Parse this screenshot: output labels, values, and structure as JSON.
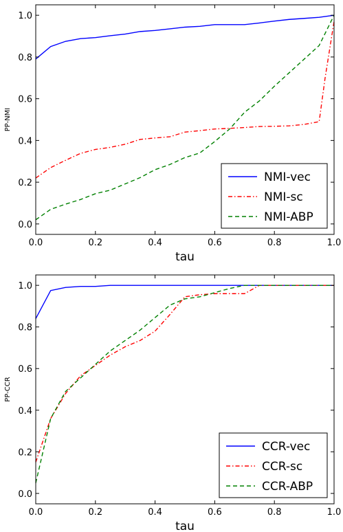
{
  "chart_data": [
    {
      "type": "line",
      "xlabel": "tau",
      "ylabel": "PP-NMI",
      "xlim": [
        0,
        1
      ],
      "ylim": [
        -0.05,
        1.05
      ],
      "xticks": [
        "0.0",
        "0.2",
        "0.4",
        "0.6",
        "0.8",
        "1.0"
      ],
      "yticks": [
        "0.0",
        "0.2",
        "0.4",
        "0.6",
        "0.8",
        "1.0"
      ],
      "grid": false,
      "legend_position": "lower-right",
      "series": [
        {
          "name": "NMI-vec",
          "color": "#0000ff",
          "style": "solid",
          "x": [
            0,
            0.05,
            0.1,
            0.15,
            0.2,
            0.25,
            0.3,
            0.35,
            0.4,
            0.45,
            0.5,
            0.55,
            0.6,
            0.65,
            0.7,
            0.75,
            0.8,
            0.85,
            0.9,
            0.95,
            1.0
          ],
          "y": [
            0.79,
            0.85,
            0.875,
            0.888,
            0.893,
            0.902,
            0.91,
            0.922,
            0.927,
            0.935,
            0.943,
            0.947,
            0.955,
            0.955,
            0.955,
            0.963,
            0.972,
            0.98,
            0.985,
            0.99,
            1.0
          ]
        },
        {
          "name": "NMI-sc",
          "color": "#ff0000",
          "style": "dashdot",
          "x": [
            0,
            0.05,
            0.1,
            0.15,
            0.2,
            0.25,
            0.3,
            0.35,
            0.4,
            0.45,
            0.5,
            0.55,
            0.6,
            0.65,
            0.7,
            0.75,
            0.8,
            0.85,
            0.9,
            0.95,
            0.97,
            1.0
          ],
          "y": [
            0.22,
            0.27,
            0.305,
            0.338,
            0.357,
            0.367,
            0.382,
            0.405,
            0.412,
            0.418,
            0.44,
            0.447,
            0.455,
            0.458,
            0.462,
            0.467,
            0.468,
            0.47,
            0.477,
            0.49,
            0.7,
            0.97
          ]
        },
        {
          "name": "NMI-ABP",
          "color": "#008000",
          "style": "dashed",
          "x": [
            0,
            0.05,
            0.1,
            0.15,
            0.2,
            0.25,
            0.3,
            0.35,
            0.4,
            0.45,
            0.5,
            0.55,
            0.6,
            0.65,
            0.7,
            0.75,
            0.8,
            0.85,
            0.9,
            0.95,
            1.0
          ],
          "y": [
            0.02,
            0.07,
            0.095,
            0.117,
            0.145,
            0.162,
            0.192,
            0.222,
            0.26,
            0.285,
            0.318,
            0.34,
            0.395,
            0.455,
            0.535,
            0.59,
            0.66,
            0.725,
            0.79,
            0.855,
            1.0
          ]
        }
      ]
    },
    {
      "type": "line",
      "xlabel": "tau",
      "ylabel": "PP-CCR",
      "xlim": [
        0,
        1
      ],
      "ylim": [
        -0.05,
        1.05
      ],
      "xticks": [
        "0.0",
        "0.2",
        "0.4",
        "0.6",
        "0.8",
        "1.0"
      ],
      "yticks": [
        "0.0",
        "0.2",
        "0.4",
        "0.6",
        "0.8",
        "1.0"
      ],
      "grid": false,
      "legend_position": "lower-right",
      "series": [
        {
          "name": "CCR-vec",
          "color": "#0000ff",
          "style": "solid",
          "x": [
            0,
            0.05,
            0.1,
            0.15,
            0.2,
            0.25,
            0.3,
            0.4,
            0.5,
            0.6,
            0.7,
            0.8,
            0.9,
            1.0
          ],
          "y": [
            0.84,
            0.975,
            0.99,
            0.995,
            0.995,
            1.0,
            1.0,
            1.0,
            1.0,
            1.0,
            1.0,
            1.0,
            1.0,
            1.0
          ]
        },
        {
          "name": "CCR-sc",
          "color": "#ff0000",
          "style": "dashdot",
          "x": [
            0,
            0.05,
            0.1,
            0.15,
            0.2,
            0.25,
            0.3,
            0.35,
            0.4,
            0.45,
            0.5,
            0.55,
            0.6,
            0.65,
            0.7,
            0.75,
            0.8,
            0.85,
            0.9,
            0.95,
            1.0
          ],
          "y": [
            0.15,
            0.36,
            0.48,
            0.565,
            0.615,
            0.665,
            0.705,
            0.735,
            0.78,
            0.86,
            0.945,
            0.955,
            0.96,
            0.96,
            0.96,
            1.0,
            1.0,
            1.0,
            1.0,
            1.0,
            1.0
          ]
        },
        {
          "name": "CCR-ABP",
          "color": "#008000",
          "style": "dashed",
          "x": [
            0,
            0.05,
            0.1,
            0.15,
            0.2,
            0.25,
            0.3,
            0.35,
            0.4,
            0.45,
            0.5,
            0.55,
            0.6,
            0.65,
            0.7,
            0.75,
            0.8,
            0.85,
            0.9,
            0.95,
            1.0
          ],
          "y": [
            0.05,
            0.36,
            0.49,
            0.555,
            0.62,
            0.685,
            0.735,
            0.785,
            0.845,
            0.905,
            0.935,
            0.945,
            0.965,
            0.985,
            1.0,
            1.0,
            1.0,
            1.0,
            1.0,
            1.0,
            1.0
          ]
        }
      ]
    }
  ]
}
